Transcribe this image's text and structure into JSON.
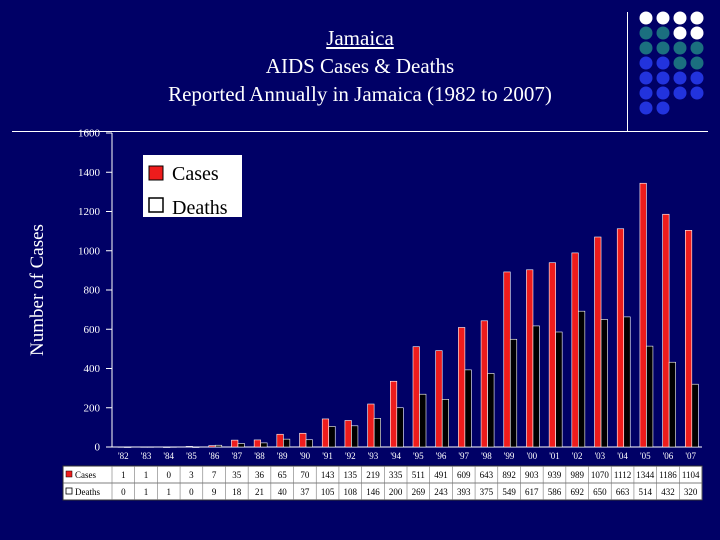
{
  "header": {
    "title_line1": "Jamaica",
    "title_line2": "AIDS Cases & Deaths",
    "title_line3": "Reported Annually in Jamaica (1982 to 2007)"
  },
  "colors": {
    "background": "#000066",
    "cases": "#ee1c1c",
    "deaths": "#000000",
    "dot_white": "#ffffff",
    "dot_teal": "#1b6f7f",
    "dot_blue": "#2233dd"
  },
  "decoration": {
    "dot_pattern": [
      "wwww",
      "ttww",
      "tttt",
      "bbtt",
      "bbbb",
      "bbbb",
      "bb"
    ]
  },
  "chart_data": {
    "type": "bar",
    "title": "",
    "xlabel": "",
    "ylabel": "Number of Cases",
    "ylim": [
      0,
      1600
    ],
    "yticks": [
      0,
      200,
      400,
      600,
      800,
      1000,
      1200,
      1400,
      1600
    ],
    "grid": false,
    "legend_position": "top-left",
    "categories": [
      "'82",
      "'83",
      "'84",
      "'85",
      "'86",
      "'87",
      "'88",
      "'89",
      "'90",
      "'91",
      "'92",
      "'93",
      "'94",
      "'95",
      "'96",
      "'97",
      "'98",
      "'99",
      "'00",
      "'01",
      "'02",
      "'03",
      "'04",
      "'05",
      "'06",
      "'07"
    ],
    "series": [
      {
        "name": "Cases",
        "color": "#ee1c1c",
        "values": [
          1,
          1,
          0,
          3,
          7,
          35,
          36,
          65,
          70,
          143,
          135,
          219,
          335,
          511,
          491,
          609,
          643,
          892,
          903,
          939,
          989,
          1070,
          1112,
          1344,
          1186,
          1104
        ]
      },
      {
        "name": "Deaths",
        "color": "#000000",
        "values": [
          0,
          1,
          1,
          0,
          9,
          18,
          21,
          40,
          37,
          105,
          108,
          146,
          200,
          269,
          243,
          393,
          375,
          549,
          617,
          586,
          692,
          650,
          663,
          514,
          432,
          320
        ]
      }
    ],
    "table_labels": {
      "cases": "Cases",
      "deaths": "Deaths"
    }
  }
}
